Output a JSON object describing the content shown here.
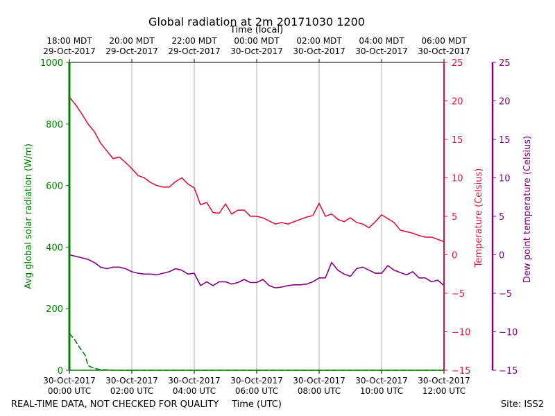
{
  "chart_data": {
    "type": "line",
    "title": "Global radiation at 2m 20171030 1200",
    "top_axis_label": "Time (local)",
    "xlabel": "Time (UTC)",
    "footer_left": "REAL-TIME DATA, NOT CHECKED FOR QUALITY",
    "footer_right": "Site: ISS2",
    "x_hours_range": [
      0,
      12
    ],
    "bottom_ticks": [
      {
        "h": 0,
        "l1": "30-Oct-2017",
        "l2": "00:00 UTC"
      },
      {
        "h": 2,
        "l1": "30-Oct-2017",
        "l2": "02:00 UTC"
      },
      {
        "h": 4,
        "l1": "30-Oct-2017",
        "l2": "04:00 UTC"
      },
      {
        "h": 6,
        "l1": "30-Oct-2017",
        "l2": "06:00 UTC"
      },
      {
        "h": 8,
        "l1": "30-Oct-2017",
        "l2": "08:00 UTC"
      },
      {
        "h": 10,
        "l1": "30-Oct-2017",
        "l2": "10:00 UTC"
      },
      {
        "h": 12,
        "l1": "30-Oct-2017",
        "l2": "12:00 UTC"
      }
    ],
    "top_ticks": [
      {
        "h": 0,
        "l1": "18:00 MDT",
        "l2": "29-Oct-2017"
      },
      {
        "h": 2,
        "l1": "20:00 MDT",
        "l2": "29-Oct-2017"
      },
      {
        "h": 4,
        "l1": "22:00 MDT",
        "l2": "29-Oct-2017"
      },
      {
        "h": 6,
        "l1": "00:00 MDT",
        "l2": "30-Oct-2017"
      },
      {
        "h": 8,
        "l1": "02:00 MDT",
        "l2": "30-Oct-2017"
      },
      {
        "h": 10,
        "l1": "04:00 MDT",
        "l2": "30-Oct-2017"
      },
      {
        "h": 12,
        "l1": "06:00 MDT",
        "l2": "30-Oct-2017"
      }
    ],
    "left_axis": {
      "label": "Avg global solar radiation (W/m)",
      "ylim": [
        0,
        1000
      ],
      "ticks": [
        0,
        200,
        400,
        600,
        800,
        1000
      ],
      "color": "#008000"
    },
    "right_axis_1": {
      "label": "Temperature (Celsius)",
      "ylim": [
        -15,
        25
      ],
      "ticks": [
        "25",
        "20",
        "15",
        "10",
        "5",
        "0",
        "−5",
        "−10",
        "−15"
      ],
      "tick_values": [
        25,
        20,
        15,
        10,
        5,
        0,
        -5,
        -10,
        -15
      ],
      "color": "#dc143c"
    },
    "right_axis_2": {
      "label": "Dew point temperature (Celsius)",
      "ylim": [
        -15,
        25
      ],
      "ticks": [
        "25",
        "20",
        "15",
        "10",
        "5",
        "0",
        "−5",
        "−10",
        "−15"
      ],
      "tick_values": [
        25,
        20,
        15,
        10,
        5,
        0,
        -5,
        -10,
        -15
      ],
      "color": "#800080"
    },
    "series": [
      {
        "name": "Avg global solar radiation",
        "axis": "left",
        "color": "#008000",
        "style": "dashed",
        "x": [
          0,
          0.2,
          0.35,
          0.5,
          0.6,
          0.8,
          1.0,
          1.5,
          2.0,
          3.0,
          4.0,
          6.0,
          8.0,
          10.0,
          12.0
        ],
        "values": [
          120,
          95,
          70,
          50,
          15,
          6,
          2,
          0,
          0,
          0,
          0,
          0,
          0,
          0,
          0
        ]
      },
      {
        "name": "Temperature",
        "axis": "right_axis_1",
        "color": "#dc143c",
        "style": "solid",
        "x": [
          0,
          0.2,
          0.4,
          0.6,
          0.8,
          1.0,
          1.2,
          1.4,
          1.6,
          1.8,
          2.0,
          2.2,
          2.4,
          2.6,
          2.8,
          3.0,
          3.2,
          3.4,
          3.6,
          3.8,
          4.0,
          4.2,
          4.4,
          4.6,
          4.8,
          5.0,
          5.2,
          5.4,
          5.6,
          5.8,
          6.0,
          6.2,
          6.4,
          6.6,
          6.8,
          7.0,
          7.2,
          7.4,
          7.6,
          7.8,
          8.0,
          8.2,
          8.4,
          8.6,
          8.8,
          9.0,
          9.2,
          9.4,
          9.6,
          9.8,
          10.0,
          10.2,
          10.4,
          10.6,
          10.8,
          11.0,
          11.2,
          11.4,
          11.6,
          11.8,
          12.0
        ],
        "values": [
          20.5,
          19.5,
          18.3,
          17.0,
          16.0,
          14.5,
          13.5,
          12.5,
          12.7,
          12.0,
          11.2,
          10.3,
          10.0,
          9.4,
          9.0,
          8.8,
          8.8,
          9.5,
          10.0,
          9.2,
          8.7,
          6.5,
          6.8,
          5.5,
          5.4,
          6.6,
          5.3,
          5.8,
          5.8,
          5.0,
          5.0,
          4.8,
          4.4,
          4.0,
          4.2,
          4.0,
          4.3,
          4.6,
          4.9,
          5.1,
          6.7,
          5.0,
          5.3,
          4.6,
          4.3,
          4.8,
          4.2,
          4.0,
          3.5,
          4.3,
          5.2,
          4.7,
          4.2,
          3.2,
          3.0,
          2.8,
          2.5,
          2.3,
          2.3,
          2.0,
          1.7
        ]
      },
      {
        "name": "Dew point temperature",
        "axis": "right_axis_2",
        "color": "#800080",
        "style": "solid",
        "x": [
          0,
          0.2,
          0.4,
          0.6,
          0.8,
          1.0,
          1.2,
          1.4,
          1.6,
          1.8,
          2.0,
          2.2,
          2.4,
          2.6,
          2.8,
          3.0,
          3.2,
          3.4,
          3.6,
          3.8,
          4.0,
          4.2,
          4.4,
          4.6,
          4.8,
          5.0,
          5.2,
          5.4,
          5.6,
          5.8,
          6.0,
          6.2,
          6.4,
          6.6,
          6.8,
          7.0,
          7.2,
          7.4,
          7.6,
          7.8,
          8.0,
          8.2,
          8.4,
          8.6,
          8.8,
          9.0,
          9.2,
          9.4,
          9.6,
          9.8,
          10.0,
          10.2,
          10.4,
          10.6,
          10.8,
          11.0,
          11.2,
          11.4,
          11.6,
          11.8,
          12.0
        ],
        "values": [
          0,
          -0.2,
          -0.4,
          -0.6,
          -1.0,
          -1.6,
          -1.8,
          -1.6,
          -1.6,
          -1.8,
          -2.2,
          -2.4,
          -2.5,
          -2.5,
          -2.6,
          -2.4,
          -2.2,
          -1.8,
          -2.0,
          -2.5,
          -2.4,
          -4.0,
          -3.5,
          -4.0,
          -3.5,
          -3.5,
          -3.8,
          -3.6,
          -3.2,
          -3.6,
          -3.6,
          -3.2,
          -4.0,
          -4.3,
          -4.2,
          -4.0,
          -3.9,
          -3.9,
          -3.8,
          -3.5,
          -3.0,
          -3.0,
          -1.0,
          -2.0,
          -2.5,
          -2.8,
          -1.8,
          -1.6,
          -2.0,
          -2.4,
          -2.4,
          -1.4,
          -2.0,
          -2.3,
          -2.6,
          -2.2,
          -3.0,
          -3.0,
          -3.5,
          -3.3,
          -4.0
        ]
      }
    ]
  }
}
